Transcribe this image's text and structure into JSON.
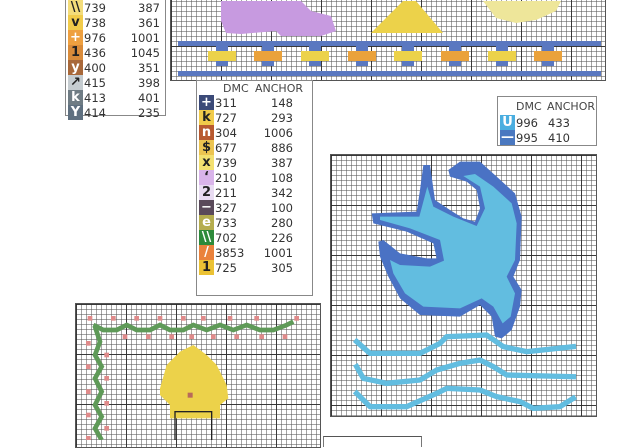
{
  "legend_left": {
    "rows": [
      {
        "symbol": "\\\\",
        "color": "#f3dc7a",
        "dmc": "739",
        "anchor": "387"
      },
      {
        "symbol": "v",
        "color": "#f1cb4a",
        "dmc": "738",
        "anchor": "361"
      },
      {
        "symbol": "+",
        "color": "#eea040",
        "dmc": "976",
        "anchor": "1001"
      },
      {
        "symbol": "1",
        "color": "#d98b3a",
        "dmc": "436",
        "anchor": "1045"
      },
      {
        "symbol": "y",
        "color": "#a8683a",
        "dmc": "400",
        "anchor": "351"
      },
      {
        "symbol": "↗",
        "color": "#c5ccd0",
        "dmc": "415",
        "anchor": "398"
      },
      {
        "symbol": "k",
        "color": "#6f7c84",
        "dmc": "413",
        "anchor": "401"
      },
      {
        "symbol": "Y",
        "color": "#5f7080",
        "dmc": "414",
        "anchor": "235"
      }
    ]
  },
  "legend_middle": {
    "header_dmc": "DMC",
    "header_anchor": "ANCHOR",
    "rows": [
      {
        "symbol": "+",
        "color": "#3b4a78",
        "dmc": "311",
        "anchor": "148"
      },
      {
        "symbol": "k",
        "color": "#f1cb4a",
        "dmc": "727",
        "anchor": "293"
      },
      {
        "symbol": "n",
        "color": "#b85a30",
        "dmc": "304",
        "anchor": "1006"
      },
      {
        "symbol": "$",
        "color": "#ecc450",
        "dmc": "677",
        "anchor": "886"
      },
      {
        "symbol": "x",
        "color": "#f3e070",
        "dmc": "739",
        "anchor": "387"
      },
      {
        "symbol": "‘",
        "color": "#d9b4ea",
        "dmc": "210",
        "anchor": "108"
      },
      {
        "symbol": "2",
        "color": "#e8dbf2",
        "dmc": "211",
        "anchor": "342"
      },
      {
        "symbol": "−",
        "color": "#5a4a5a",
        "dmc": "327",
        "anchor": "100"
      },
      {
        "symbol": "e",
        "color": "#b5ad4e",
        "dmc": "733",
        "anchor": "280"
      },
      {
        "symbol": "\\\\",
        "color": "#2d8a3a",
        "dmc": "702",
        "anchor": "226"
      },
      {
        "symbol": "/",
        "color": "#ea823c",
        "dmc": "3853",
        "anchor": "1001"
      },
      {
        "symbol": "1",
        "color": "#ebc234",
        "dmc": "725",
        "anchor": "305"
      }
    ]
  },
  "legend_right": {
    "header_dmc": "DMC",
    "header_anchor": "ANCHOR",
    "rows": [
      {
        "symbol": "U",
        "color": "#4aaee0",
        "dmc": "996",
        "anchor": "433"
      },
      {
        "symbol": "—",
        "color": "#4a78c0",
        "dmc": "995",
        "anchor": "410"
      }
    ]
  },
  "colors": {
    "purple": "#c79ae0",
    "yellow": "#ecd24a",
    "pale_yellow": "#eee69a",
    "orange": "#eaa23c",
    "band_blue": "#5a78c0",
    "dark_blue": "#4a72c4",
    "light_blue": "#62bde0",
    "green": "#5f9a58",
    "pink": "#e08a8a"
  }
}
